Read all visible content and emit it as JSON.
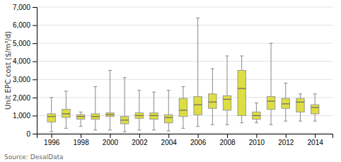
{
  "chart_data": {
    "type": "box",
    "ylabel": "Unit EPC cost ($/m³/d)",
    "annotation": "Source: DesalData",
    "x": [
      1996,
      1997,
      1998,
      1999,
      2000,
      2001,
      2002,
      2003,
      2004,
      2005,
      2006,
      2007,
      2008,
      2009,
      2010,
      2011,
      2012,
      2013,
      2014
    ],
    "whislo": [
      100,
      300,
      400,
      200,
      200,
      100,
      200,
      200,
      150,
      300,
      400,
      500,
      500,
      600,
      600,
      500,
      700,
      700,
      700
    ],
    "q1": [
      650,
      900,
      800,
      800,
      950,
      550,
      850,
      800,
      600,
      950,
      1050,
      1400,
      1300,
      1000,
      800,
      1350,
      1400,
      1200,
      1100
    ],
    "med": [
      950,
      1100,
      950,
      950,
      1050,
      750,
      1000,
      1000,
      900,
      1300,
      1600,
      1750,
      1900,
      2500,
      1000,
      1800,
      1650,
      1750,
      1450
    ],
    "q3": [
      1100,
      1350,
      1050,
      1100,
      1150,
      950,
      1150,
      1150,
      1050,
      1950,
      2050,
      2200,
      2100,
      3500,
      1200,
      2050,
      1950,
      1950,
      1600
    ],
    "whishi": [
      2000,
      2350,
      1200,
      2600,
      3500,
      3100,
      2400,
      2300,
      2400,
      2600,
      6400,
      3600,
      4300,
      4300,
      1700,
      5000,
      2800,
      2200,
      2200
    ],
    "color": "#dede40",
    "xlim": [
      1995.0,
      2015.2
    ],
    "xticks": [
      1996,
      1998,
      2000,
      2002,
      2004,
      2006,
      2008,
      2010,
      2012,
      2014
    ],
    "ylim": [
      0,
      7000
    ],
    "yticks": [
      0,
      {
        "value": 1000,
        "label": "1,000"
      },
      {
        "value": 2000,
        "label": "2,000"
      },
      {
        "value": 3000,
        "label": "3,000"
      },
      {
        "value": 4000,
        "label": "4,000"
      },
      {
        "value": 5000,
        "label": "5,000"
      },
      {
        "value": 6000,
        "label": "6,000"
      },
      {
        "value": 7000,
        "label": "7,000"
      }
    ],
    "grid": true
  }
}
